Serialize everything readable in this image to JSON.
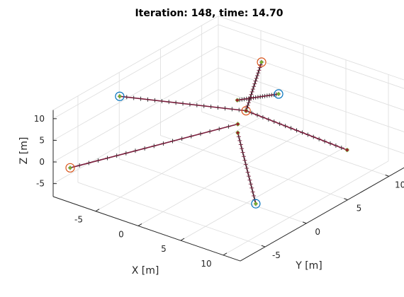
{
  "chart_data": {
    "type": "line3d",
    "title": "Iteration: 148, time: 14.70",
    "xlabel": "X [m]",
    "ylabel": "Y [m]",
    "zlabel": "Z [m]",
    "xlim": [
      -10,
      12
    ],
    "ylim": [
      -8,
      12
    ],
    "zlim": [
      -8,
      12
    ],
    "xticks": [
      -5,
      0,
      5,
      10
    ],
    "yticks": [
      -5,
      0,
      5,
      10
    ],
    "zticks": [
      -5,
      0,
      5,
      10
    ],
    "grid": true,
    "colors": {
      "trajectory": "#7a1f3d",
      "marker_blue": "#0072bd",
      "marker_orange": "#d95319",
      "marker_green": "#77ac30",
      "marker_red": "#a2142f"
    },
    "series": [
      {
        "start": [
          -8,
          -2,
          10
        ],
        "end": [
          2,
          3,
          8
        ],
        "marker": "blue"
      },
      {
        "start": [
          -8,
          -8,
          0
        ],
        "end": [
          2,
          2,
          6
        ],
        "marker": "orange"
      },
      {
        "start": [
          2,
          3,
          8
        ],
        "end": [
          10,
          7,
          0
        ],
        "marker": "orange"
      },
      {
        "start": [
          0,
          9,
          4
        ],
        "end": [
          0,
          4,
          8
        ],
        "marker": "blue"
      },
      {
        "start": [
          -2,
          9,
          10
        ],
        "end": [
          2,
          3,
          8
        ],
        "marker": "orange"
      },
      {
        "start": [
          8,
          -2,
          -4
        ],
        "end": [
          2,
          2,
          4
        ],
        "marker": "blue"
      }
    ]
  }
}
